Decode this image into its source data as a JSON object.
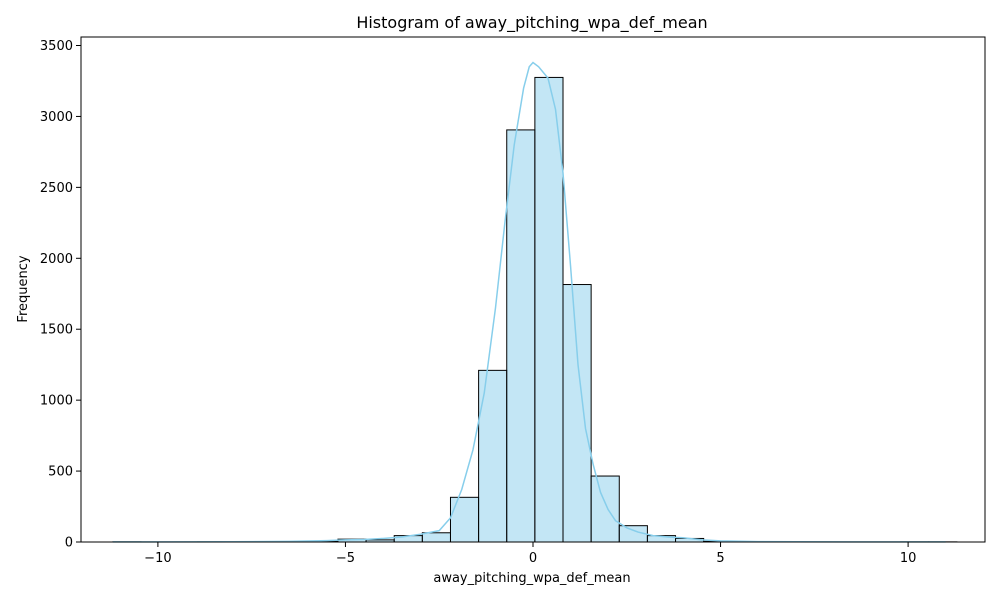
{
  "chart_data": {
    "type": "bar",
    "title": "Histogram of away_pitching_wpa_def_mean",
    "xlabel": "away_pitching_wpa_def_mean",
    "ylabel": "Frequency",
    "xlim": [
      -12.05,
      12.05
    ],
    "ylim": [
      0,
      3560
    ],
    "x_ticks": [
      -10,
      -5,
      0,
      5,
      10
    ],
    "y_ticks": [
      0,
      500,
      1000,
      1500,
      2000,
      2500,
      3000,
      3500
    ],
    "grid": false,
    "colors": {
      "bar_fill": "#87ceeb",
      "bar_edge": "#000000",
      "kde_line": "#87ceeb"
    },
    "bins": [
      {
        "x0": -11.2,
        "x1": -10.45,
        "value": 1
      },
      {
        "x0": -10.45,
        "x1": -9.7,
        "value": 0
      },
      {
        "x0": -9.7,
        "x1": -8.95,
        "value": 0
      },
      {
        "x0": -8.95,
        "x1": -8.2,
        "value": 1
      },
      {
        "x0": -8.2,
        "x1": -7.45,
        "value": 0
      },
      {
        "x0": -7.45,
        "x1": -6.7,
        "value": 1
      },
      {
        "x0": -6.7,
        "x1": -5.95,
        "value": 2
      },
      {
        "x0": -5.95,
        "x1": -5.2,
        "value": 5
      },
      {
        "x0": -5.2,
        "x1": -4.45,
        "value": 20
      },
      {
        "x0": -4.45,
        "x1": -3.7,
        "value": 15
      },
      {
        "x0": -3.7,
        "x1": -2.95,
        "value": 45
      },
      {
        "x0": -2.95,
        "x1": -2.2,
        "value": 65
      },
      {
        "x0": -2.2,
        "x1": -1.45,
        "value": 315
      },
      {
        "x0": -1.45,
        "x1": -0.7,
        "value": 1210
      },
      {
        "x0": -0.7,
        "x1": 0.05,
        "value": 2905
      },
      {
        "x0": 0.05,
        "x1": 0.8,
        "value": 3275
      },
      {
        "x0": 0.8,
        "x1": 1.55,
        "value": 1815
      },
      {
        "x0": 1.55,
        "x1": 2.3,
        "value": 465
      },
      {
        "x0": 2.3,
        "x1": 3.05,
        "value": 115
      },
      {
        "x0": 3.05,
        "x1": 3.8,
        "value": 45
      },
      {
        "x0": 3.8,
        "x1": 4.55,
        "value": 25
      },
      {
        "x0": 4.55,
        "x1": 5.3,
        "value": 5
      },
      {
        "x0": 5.3,
        "x1": 6.05,
        "value": 2
      },
      {
        "x0": 6.05,
        "x1": 6.8,
        "value": 1
      },
      {
        "x0": 6.8,
        "x1": 7.55,
        "value": 0
      },
      {
        "x0": 7.55,
        "x1": 8.3,
        "value": 0
      },
      {
        "x0": 8.3,
        "x1": 9.05,
        "value": 0
      },
      {
        "x0": 9.05,
        "x1": 9.8,
        "value": 0
      },
      {
        "x0": 9.8,
        "x1": 10.55,
        "value": 1
      },
      {
        "x0": 10.55,
        "x1": 11.3,
        "value": 1
      }
    ],
    "kde": [
      [
        -11.2,
        1
      ],
      [
        -10,
        1
      ],
      [
        -8,
        2
      ],
      [
        -6.5,
        4
      ],
      [
        -5.5,
        10
      ],
      [
        -5,
        15
      ],
      [
        -4.5,
        18
      ],
      [
        -4,
        25
      ],
      [
        -3.5,
        35
      ],
      [
        -3,
        55
      ],
      [
        -2.5,
        80
      ],
      [
        -2.2,
        170
      ],
      [
        -1.9,
        370
      ],
      [
        -1.6,
        650
      ],
      [
        -1.3,
        1050
      ],
      [
        -1.0,
        1650
      ],
      [
        -0.75,
        2250
      ],
      [
        -0.5,
        2800
      ],
      [
        -0.25,
        3200
      ],
      [
        -0.1,
        3350
      ],
      [
        0.0,
        3380
      ],
      [
        0.15,
        3350
      ],
      [
        0.4,
        3270
      ],
      [
        0.6,
        3050
      ],
      [
        0.8,
        2600
      ],
      [
        1.0,
        1950
      ],
      [
        1.2,
        1250
      ],
      [
        1.4,
        800
      ],
      [
        1.6,
        550
      ],
      [
        1.8,
        350
      ],
      [
        2.0,
        230
      ],
      [
        2.2,
        150
      ],
      [
        2.5,
        100
      ],
      [
        2.8,
        70
      ],
      [
        3.2,
        45
      ],
      [
        3.6,
        35
      ],
      [
        4.0,
        30
      ],
      [
        4.5,
        15
      ],
      [
        5.0,
        8
      ],
      [
        6.0,
        3
      ],
      [
        7.0,
        2
      ],
      [
        8.5,
        1
      ],
      [
        10.0,
        1
      ],
      [
        11.0,
        1
      ]
    ]
  }
}
